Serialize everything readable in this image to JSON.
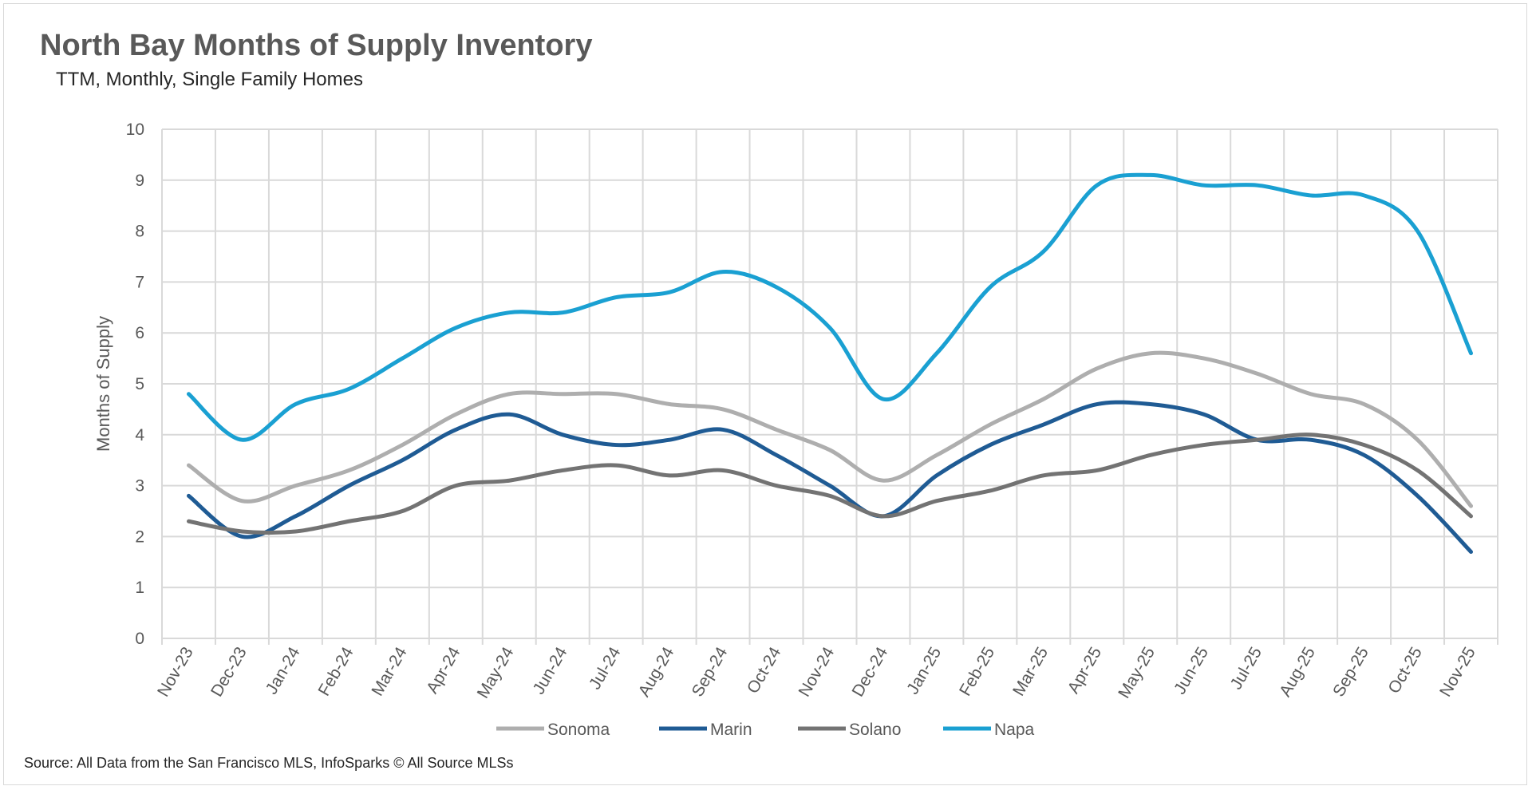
{
  "chart_data": {
    "type": "line",
    "title": "North Bay Months of Supply Inventory",
    "subtitle": "TTM, Monthly, Single Family Homes",
    "xlabel": "",
    "ylabel": "Months of Supply",
    "ylim": [
      0,
      10
    ],
    "yticks": [
      "0",
      "1",
      "2",
      "3",
      "4",
      "5",
      "6",
      "7",
      "8",
      "9",
      "10"
    ],
    "grid": true,
    "legend": "bottom",
    "categories": [
      "Nov-23",
      "Dec-23",
      "Jan-24",
      "Feb-24",
      "Mar-24",
      "Apr-24",
      "May-24",
      "Jun-24",
      "Jul-24",
      "Aug-24",
      "Sep-24",
      "Oct-24",
      "Nov-24",
      "Dec-24",
      "Jan-25",
      "Feb-25",
      "Mar-25",
      "Apr-25",
      "May-25",
      "Jun-25",
      "Jul-25",
      "Aug-25",
      "Sep-25",
      "Oct-25",
      "Nov-25"
    ],
    "series": [
      {
        "name": "Sonoma",
        "color": "#aeaeae",
        "values": [
          3.4,
          2.7,
          3.0,
          3.3,
          3.8,
          4.4,
          4.8,
          4.8,
          4.8,
          4.6,
          4.5,
          4.1,
          3.7,
          3.1,
          3.6,
          4.2,
          4.7,
          5.3,
          5.6,
          5.5,
          5.2,
          4.8,
          4.6,
          3.9,
          2.6
        ]
      },
      {
        "name": "Marin",
        "color": "#1f5b94",
        "values": [
          2.8,
          2.0,
          2.4,
          3.0,
          3.5,
          4.1,
          4.4,
          4.0,
          3.8,
          3.9,
          4.1,
          3.6,
          3.0,
          2.4,
          3.2,
          3.8,
          4.2,
          4.6,
          4.6,
          4.4,
          3.9,
          3.9,
          3.6,
          2.8,
          1.7
        ]
      },
      {
        "name": "Solano",
        "color": "#737373",
        "values": [
          2.3,
          2.1,
          2.1,
          2.3,
          2.5,
          3.0,
          3.1,
          3.3,
          3.4,
          3.2,
          3.3,
          3.0,
          2.8,
          2.4,
          2.7,
          2.9,
          3.2,
          3.3,
          3.6,
          3.8,
          3.9,
          4.0,
          3.8,
          3.3,
          2.4
        ]
      },
      {
        "name": "Napa",
        "color": "#1aa0d2",
        "values": [
          4.8,
          3.9,
          4.6,
          4.9,
          5.5,
          6.1,
          6.4,
          6.4,
          6.7,
          6.8,
          7.2,
          6.9,
          6.1,
          4.7,
          5.6,
          6.9,
          7.6,
          8.9,
          9.1,
          8.9,
          8.9,
          8.7,
          8.7,
          8.0,
          5.6
        ]
      }
    ]
  },
  "source": "Source: All Data from the San Francisco MLS, InfoSparks © All Source MLSs"
}
